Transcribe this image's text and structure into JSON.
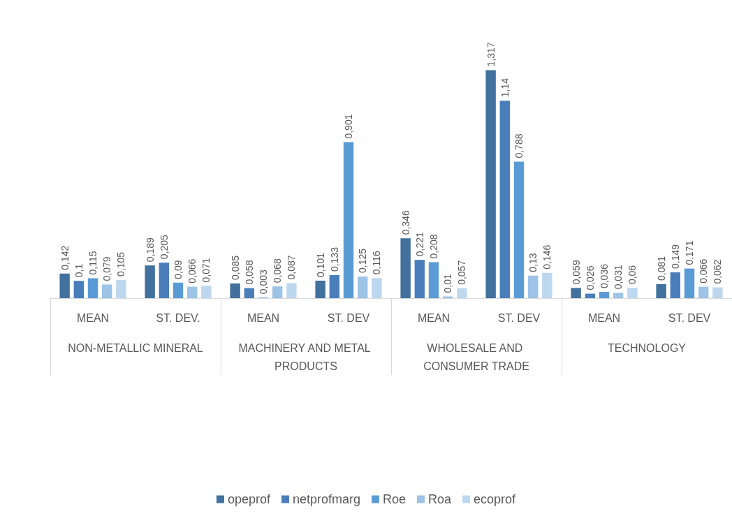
{
  "chart_data": {
    "type": "bar",
    "categories": [
      "MEAN",
      "ST. DEV.",
      "MEAN",
      "ST. DEV",
      "MEAN",
      "ST. DEV",
      "MEAN",
      "ST. DEV"
    ],
    "annotations": [
      "NON-METALLIC MINERAL",
      "MACHINERY AND METAL PRODUCTS",
      "WHOLESALE AND CONSUMER TRADE",
      "TECHNOLOGY"
    ],
    "series": [
      {
        "name": "opeprof",
        "color": "#41719c",
        "values": [
          0.142,
          0.189,
          0.085,
          0.101,
          0.346,
          1.317,
          0.059,
          0.081
        ],
        "value_labels": [
          "0,142",
          "0,189",
          "0,085",
          "0,101",
          "0,346",
          "1,317",
          "0,059",
          "0,081"
        ]
      },
      {
        "name": "netprofmarg",
        "color": "#4a7ebb",
        "values": [
          0.1,
          0.205,
          0.058,
          0.133,
          0.221,
          1.14,
          0.026,
          0.149
        ],
        "value_labels": [
          "0,1",
          "0,205",
          "0,058",
          "0,133",
          "0,221",
          "1,14",
          "0,026",
          "0,149"
        ]
      },
      {
        "name": "Roe",
        "color": "#5b9bd5",
        "values": [
          0.115,
          0.09,
          0.003,
          0.901,
          0.208,
          0.788,
          0.036,
          0.171
        ],
        "value_labels": [
          "0,115",
          "0,09",
          "0,003",
          "0,901",
          "0,208",
          "0,788",
          "0,036",
          "0,171"
        ]
      },
      {
        "name": "Roa",
        "color": "#9dc3e6",
        "values": [
          0.079,
          0.066,
          0.068,
          0.125,
          0.01,
          0.13,
          0.031,
          0.066
        ],
        "value_labels": [
          "0,079",
          "0,066",
          "0,068",
          "0,125",
          "0,01",
          "0,13",
          "0,031",
          "0,066"
        ]
      },
      {
        "name": "ecoprof",
        "color": "#bdd7ee",
        "values": [
          0.105,
          0.071,
          0.087,
          0.116,
          0.057,
          0.146,
          0.06,
          0.062
        ],
        "value_labels": [
          "0,105",
          "0,071",
          "0,087",
          "0,116",
          "0,057",
          "0,146",
          "0,06",
          "0,062"
        ]
      }
    ],
    "legend": "bottom"
  }
}
